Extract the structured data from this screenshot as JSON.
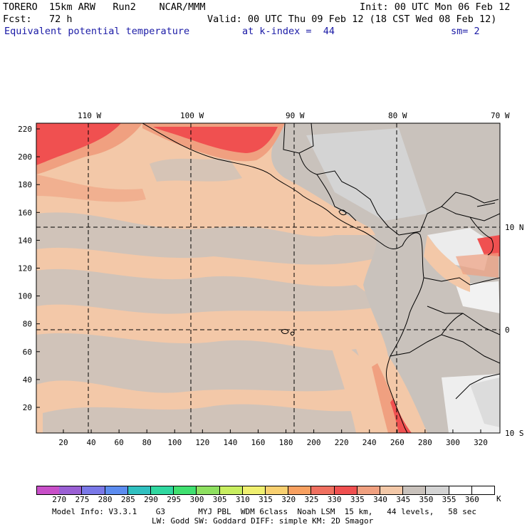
{
  "header": {
    "line1_left": "TORERO  15km ARW   Run2    NCAR/MMM",
    "line1_right": "Init: 00 UTC Mon 06 Feb 12",
    "line2_left": "Fcst:   72 h",
    "line2_right": "Valid: 00 UTC Thu 09 Feb 12 (18 CST Wed 08 Feb 12)",
    "line3_field": "Equivalent potential temperature",
    "line3_level": "at k-index =  44",
    "line3_smooth": "sm= 2"
  },
  "map": {
    "top_lon_labels": [
      "110 W",
      "100 W",
      "90 W",
      "80 W",
      "70 W"
    ],
    "right_lat_labels": [
      "10 N",
      "0",
      "10 S"
    ],
    "left_y_ticks": [
      "220",
      "200",
      "180",
      "160",
      "140",
      "120",
      "100",
      "80",
      "60",
      "40",
      "20"
    ],
    "bottom_x_ticks": [
      "20",
      "40",
      "60",
      "80",
      "100",
      "120",
      "140",
      "160",
      "180",
      "200",
      "220",
      "240",
      "260",
      "280",
      "300",
      "320"
    ]
  },
  "colorbar": {
    "labels": [
      "270",
      "275",
      "280",
      "285",
      "290",
      "295",
      "300",
      "305",
      "310",
      "315",
      "320",
      "325",
      "330",
      "335",
      "340",
      "345",
      "350",
      "355",
      "360"
    ],
    "unit": "K",
    "colors": [
      "#c84fc8",
      "#9a5fd4",
      "#7a78e8",
      "#5c8cf0",
      "#30c0c0",
      "#30d8a0",
      "#40e070",
      "#8ee060",
      "#c8ee60",
      "#f0f070",
      "#f8d070",
      "#f8a060",
      "#f07060",
      "#f05050",
      "#f0a080",
      "#f3c8a8",
      "#c9c2bc",
      "#d4d4d4",
      "#ffffff",
      "#ffffff"
    ]
  },
  "footer": {
    "line1": "Model Info: V3.3.1    G3       MYJ PBL  WDM 6class  Noah LSM  15 km,   44 levels,   58 sec",
    "line2": "LW: Godd SW: Goddard DIFF: simple KM: 2D Smagor"
  }
}
